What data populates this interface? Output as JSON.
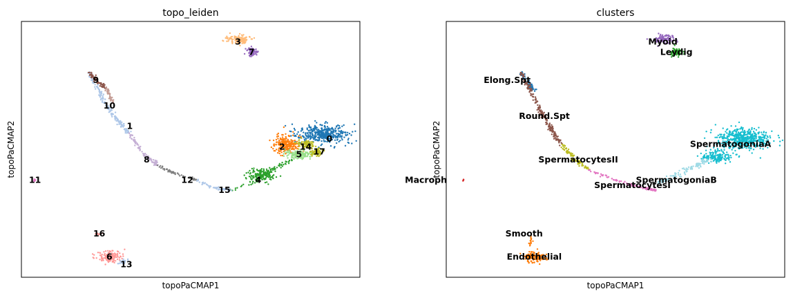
{
  "chart_data": [
    {
      "type": "scatter",
      "title": "topo_leiden",
      "xlabel": "topoPaCMAP1",
      "ylabel": "topoPaCMAP2",
      "xticks": false,
      "yticks": false,
      "xlim": [
        0,
        100
      ],
      "ylim": [
        0,
        100
      ],
      "clusters": [
        {
          "name": "0",
          "color": "#1f77b4",
          "label_pos": [
            91,
            54
          ]
        },
        {
          "name": "1",
          "color": "#aec7e8",
          "label_pos": [
            32,
            59
          ]
        },
        {
          "name": "2",
          "color": "#ff7f0e",
          "label_pos": [
            77,
            51
          ]
        },
        {
          "name": "3",
          "color": "#ffbb78",
          "label_pos": [
            64,
            92
          ]
        },
        {
          "name": "4",
          "color": "#2ca02c",
          "label_pos": [
            70,
            38
          ]
        },
        {
          "name": "5",
          "color": "#98df8a",
          "label_pos": [
            82,
            48
          ]
        },
        {
          "name": "6",
          "color": "#ff9896",
          "label_pos": [
            26,
            8
          ]
        },
        {
          "name": "7",
          "color": "#9467bd",
          "label_pos": [
            68,
            88
          ]
        },
        {
          "name": "8",
          "color": "#c5b0d5",
          "label_pos": [
            37,
            46
          ]
        },
        {
          "name": "9",
          "color": "#8c564b",
          "label_pos": [
            22,
            77
          ]
        },
        {
          "name": "10",
          "color": "#c49c94",
          "label_pos": [
            26,
            67
          ]
        },
        {
          "name": "11",
          "color": "#e377c2",
          "label_pos": [
            4,
            38
          ]
        },
        {
          "name": "12",
          "color": "#7f7f7f",
          "label_pos": [
            49,
            38
          ]
        },
        {
          "name": "13",
          "color": "#aec7e8",
          "label_pos": [
            31,
            5
          ]
        },
        {
          "name": "14",
          "color": "#bcbd22",
          "label_pos": [
            84,
            51
          ]
        },
        {
          "name": "15",
          "color": "#aec7e8",
          "label_pos": [
            60,
            34
          ]
        },
        {
          "name": "16",
          "color": "#ff9896",
          "label_pos": [
            23,
            17
          ]
        },
        {
          "name": "17",
          "color": "#bcbd22",
          "label_pos": [
            88,
            49
          ]
        }
      ]
    },
    {
      "type": "scatter",
      "title": "clusters",
      "xlabel": "topoPaCMAP1",
      "ylabel": "topoPaCMAP2",
      "xticks": false,
      "yticks": false,
      "xlim": [
        0,
        100
      ],
      "ylim": [
        0,
        100
      ],
      "clusters": [
        {
          "name": "Myoid",
          "color": "#9467bd",
          "label_pos": [
            64,
            92
          ]
        },
        {
          "name": "Leydig",
          "color": "#2ca02c",
          "label_pos": [
            68,
            88
          ]
        },
        {
          "name": "Elong.Spt",
          "color": "#1f77b4",
          "label_pos": [
            18,
            77
          ]
        },
        {
          "name": "Round.Spt",
          "color": "#8c564b",
          "label_pos": [
            29,
            63
          ]
        },
        {
          "name": "SpermatocytesII",
          "color": "#bcbd22",
          "label_pos": [
            39,
            46
          ]
        },
        {
          "name": "SpermatogoniaA",
          "color": "#17becf",
          "label_pos": [
            84,
            52
          ]
        },
        {
          "name": "SpermatogoniaB",
          "color": "#9edae5",
          "label_pos": [
            68,
            38
          ]
        },
        {
          "name": "SpermatocytesI",
          "color": "#e377c2",
          "label_pos": [
            55,
            36
          ]
        },
        {
          "name": "Macroph",
          "color": "#d62728",
          "label_pos": [
            -6,
            38
          ]
        },
        {
          "name": "Smooth",
          "color": "#ff7f0e",
          "label_pos": [
            23,
            17
          ]
        },
        {
          "name": "Endothelial",
          "color": "#ff7f0e",
          "label_pos": [
            26,
            8
          ]
        }
      ]
    }
  ]
}
